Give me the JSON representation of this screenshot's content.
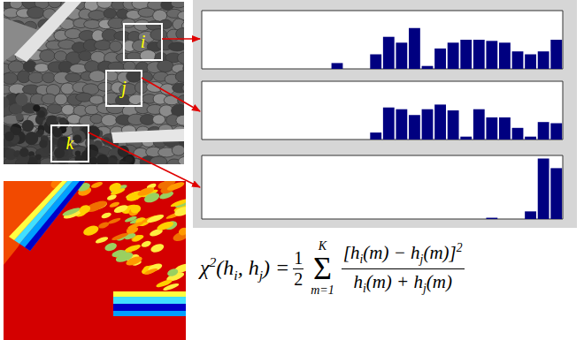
{
  "patches": [
    "i",
    "j",
    "k"
  ],
  "chart_data": [
    {
      "type": "bar",
      "categories": [
        null,
        null,
        null,
        null,
        null,
        null,
        null,
        null,
        null,
        null,
        null,
        null,
        null,
        null,
        null,
        null,
        null,
        null,
        null,
        null,
        null,
        null,
        null,
        null,
        null,
        null,
        null,
        null
      ],
      "values": [
        0,
        0,
        0,
        0,
        0,
        0,
        0,
        0,
        0,
        0,
        0.1,
        0,
        0,
        0.25,
        0.55,
        0.45,
        0.7,
        0.05,
        0.35,
        0.45,
        0.5,
        0.5,
        0.48,
        0.45,
        0.3,
        0.25,
        0.3,
        0.5
      ],
      "ylim": [
        0,
        1
      ],
      "color": "#000080",
      "tick_labels": false
    },
    {
      "type": "bar",
      "categories": [
        null,
        null,
        null,
        null,
        null,
        null,
        null,
        null,
        null,
        null,
        null,
        null,
        null,
        null,
        null,
        null,
        null,
        null,
        null,
        null,
        null,
        null,
        null,
        null,
        null,
        null,
        null,
        null
      ],
      "values": [
        0,
        0,
        0,
        0,
        0,
        0,
        0,
        0,
        0,
        0,
        0,
        0,
        0,
        0.12,
        0.55,
        0.52,
        0.42,
        0.52,
        0.6,
        0.5,
        0.05,
        0.52,
        0.38,
        0.38,
        0.2,
        0.05,
        0.3,
        0.28
      ],
      "ylim": [
        0,
        1
      ],
      "color": "#000080",
      "tick_labels": false
    },
    {
      "type": "bar",
      "categories": [
        null,
        null,
        null,
        null,
        null,
        null,
        null,
        null,
        null,
        null,
        null,
        null,
        null,
        null,
        null,
        null,
        null,
        null,
        null,
        null,
        null,
        null,
        null,
        null,
        null,
        null,
        null,
        null
      ],
      "values": [
        0,
        0,
        0,
        0,
        0,
        0,
        0,
        0,
        0,
        0,
        0,
        0,
        0,
        0,
        0,
        0,
        0,
        0,
        0,
        0,
        0,
        0,
        0.02,
        0,
        0,
        0.12,
        0.95,
        0.8
      ],
      "ylim": [
        0,
        1
      ],
      "color": "#000080",
      "tick_labels": false
    }
  ],
  "formula": {
    "lhs": [
      {
        "t": "χ"
      },
      {
        "sup": "2"
      },
      {
        "t": "(h"
      },
      {
        "sub": "i"
      },
      {
        "t": ", h"
      },
      {
        "sub": "j"
      },
      {
        "t": ") ="
      }
    ],
    "coefficient": {
      "numerator": "1",
      "denominator": "2"
    },
    "sum": {
      "symbol": "Σ",
      "lower": "m=1",
      "upper": "K"
    },
    "numerator": [
      {
        "t": "[h"
      },
      {
        "sub": "i"
      },
      {
        "t": "(m) − h"
      },
      {
        "sub": "j"
      },
      {
        "t": "(m)]"
      },
      {
        "sup": "2"
      }
    ],
    "denominator": [
      {
        "t": "h"
      },
      {
        "sub": "i"
      },
      {
        "t": "(m) + h"
      },
      {
        "sub": "j"
      },
      {
        "t": "(m)"
      }
    ]
  }
}
